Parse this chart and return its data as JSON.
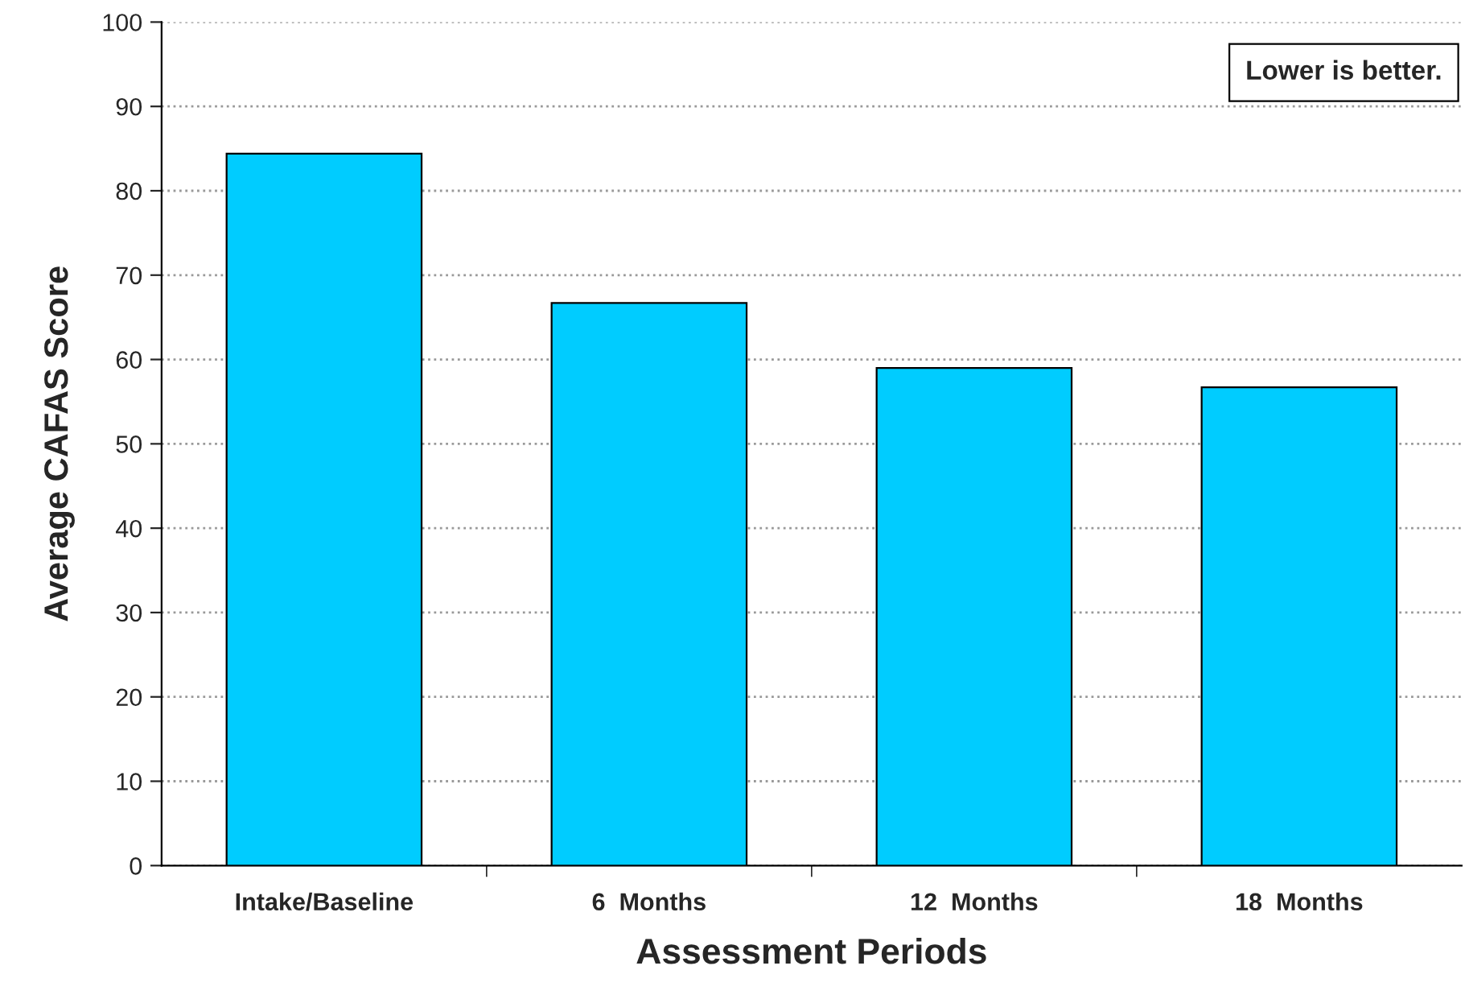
{
  "chart_data": {
    "type": "bar",
    "categories": [
      "Intake/Baseline",
      "6  Months",
      "12  Months",
      "18  Months"
    ],
    "values": [
      84.4,
      66.7,
      59.0,
      56.7
    ],
    "color": "#00ccff",
    "xlabel": "Assessment Periods",
    "ylabel": "Average CAFAS Score",
    "annotations": [
      "Lower is better."
    ],
    "ylim": [
      0,
      100
    ],
    "yticks": [
      0,
      10,
      20,
      30,
      40,
      50,
      60,
      70,
      80,
      90,
      100
    ],
    "grid": "y"
  }
}
